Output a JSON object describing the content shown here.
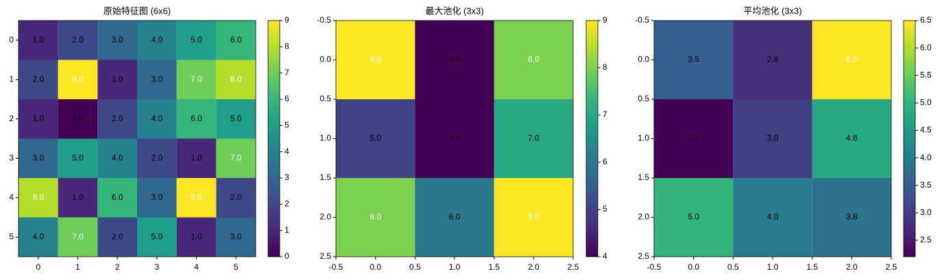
{
  "chart_data": [
    {
      "type": "heatmap",
      "title": "原始特征图 (6x6)",
      "colormap": "viridis",
      "values": [
        [
          1,
          2,
          3,
          4,
          5,
          6
        ],
        [
          2,
          9,
          1,
          3,
          7,
          8
        ],
        [
          1,
          0,
          2,
          4,
          6,
          5
        ],
        [
          3,
          5,
          4,
          2,
          1,
          7
        ],
        [
          8,
          1,
          6,
          3,
          9,
          2
        ],
        [
          4,
          7,
          2,
          5,
          1,
          3
        ]
      ],
      "value_labels": [
        [
          "1.0",
          "2.0",
          "3.0",
          "4.0",
          "5.0",
          "6.0"
        ],
        [
          "2.0",
          "9.0",
          "1.0",
          "3.0",
          "7.0",
          "8.0"
        ],
        [
          "1.0",
          "0.0",
          "2.0",
          "4.0",
          "6.0",
          "5.0"
        ],
        [
          "3.0",
          "5.0",
          "4.0",
          "2.0",
          "1.0",
          "7.0"
        ],
        [
          "8.0",
          "1.0",
          "6.0",
          "3.0",
          "9.0",
          "2.0"
        ],
        [
          "4.0",
          "7.0",
          "2.0",
          "5.0",
          "1.0",
          "3.0"
        ]
      ],
      "xlim": [
        -0.5,
        5.5
      ],
      "ylim": [
        5.5,
        -0.5
      ],
      "xticks": [
        0,
        1,
        2,
        3,
        4,
        5
      ],
      "yticks": [
        0,
        1,
        2,
        3,
        4,
        5
      ],
      "clim": [
        0,
        9
      ],
      "cticks": [
        0,
        1,
        2,
        3,
        4,
        5,
        6,
        7,
        8,
        9
      ]
    },
    {
      "type": "heatmap",
      "title": "最大池化 (3x3)",
      "colormap": "viridis",
      "values": [
        [
          9,
          4,
          8
        ],
        [
          5,
          4,
          7
        ],
        [
          8,
          6,
          9
        ]
      ],
      "value_labels": [
        [
          "9.0",
          "4.0",
          "8.0"
        ],
        [
          "5.0",
          "4.0",
          "7.0"
        ],
        [
          "8.0",
          "6.0",
          "9.0"
        ]
      ],
      "xlim": [
        -0.5,
        2.5
      ],
      "ylim": [
        2.5,
        -0.5
      ],
      "xticks": [
        -0.5,
        {
          "value": 0,
          "label": "0.0"
        },
        0.5,
        {
          "value": 1,
          "label": "1.0"
        },
        1.5,
        {
          "value": 2,
          "label": "2.0"
        },
        2.5
      ],
      "yticks": [
        -0.5,
        {
          "value": 0,
          "label": "0.0"
        },
        0.5,
        {
          "value": 1,
          "label": "1.0"
        },
        1.5,
        {
          "value": 2,
          "label": "2.0"
        },
        2.5
      ],
      "clim": [
        4,
        9
      ],
      "cticks": [
        4,
        5,
        6,
        7,
        8,
        9
      ]
    },
    {
      "type": "heatmap",
      "title": "平均池化 (3x3)",
      "colormap": "viridis",
      "values": [
        [
          3.5,
          2.8,
          6.5
        ],
        [
          2.2,
          3,
          4.8
        ],
        [
          5,
          4,
          3.8
        ]
      ],
      "value_labels": [
        [
          "3.5",
          "2.8",
          "6.5"
        ],
        [
          "2.2",
          "3.0",
          "4.8"
        ],
        [
          "5.0",
          "4.0",
          "3.8"
        ]
      ],
      "xlim": [
        -0.5,
        2.5
      ],
      "ylim": [
        2.5,
        -0.5
      ],
      "xticks": [
        -0.5,
        {
          "value": 0,
          "label": "0.0"
        },
        0.5,
        {
          "value": 1,
          "label": "1.0"
        },
        1.5,
        {
          "value": 2,
          "label": "2.0"
        },
        2.5
      ],
      "yticks": [
        -0.5,
        {
          "value": 0,
          "label": "0.0"
        },
        0.5,
        {
          "value": 1,
          "label": "1.0"
        },
        1.5,
        {
          "value": 2,
          "label": "2.0"
        },
        2.5
      ],
      "clim": [
        2.2,
        6.5
      ],
      "cticks": [
        2.5,
        {
          "value": 3,
          "label": "3.0"
        },
        3.5,
        {
          "value": 4,
          "label": "4.0"
        },
        4.5,
        {
          "value": 5,
          "label": "5.0"
        },
        5.5,
        {
          "value": 6,
          "label": "6.0"
        },
        6.5
      ]
    }
  ]
}
